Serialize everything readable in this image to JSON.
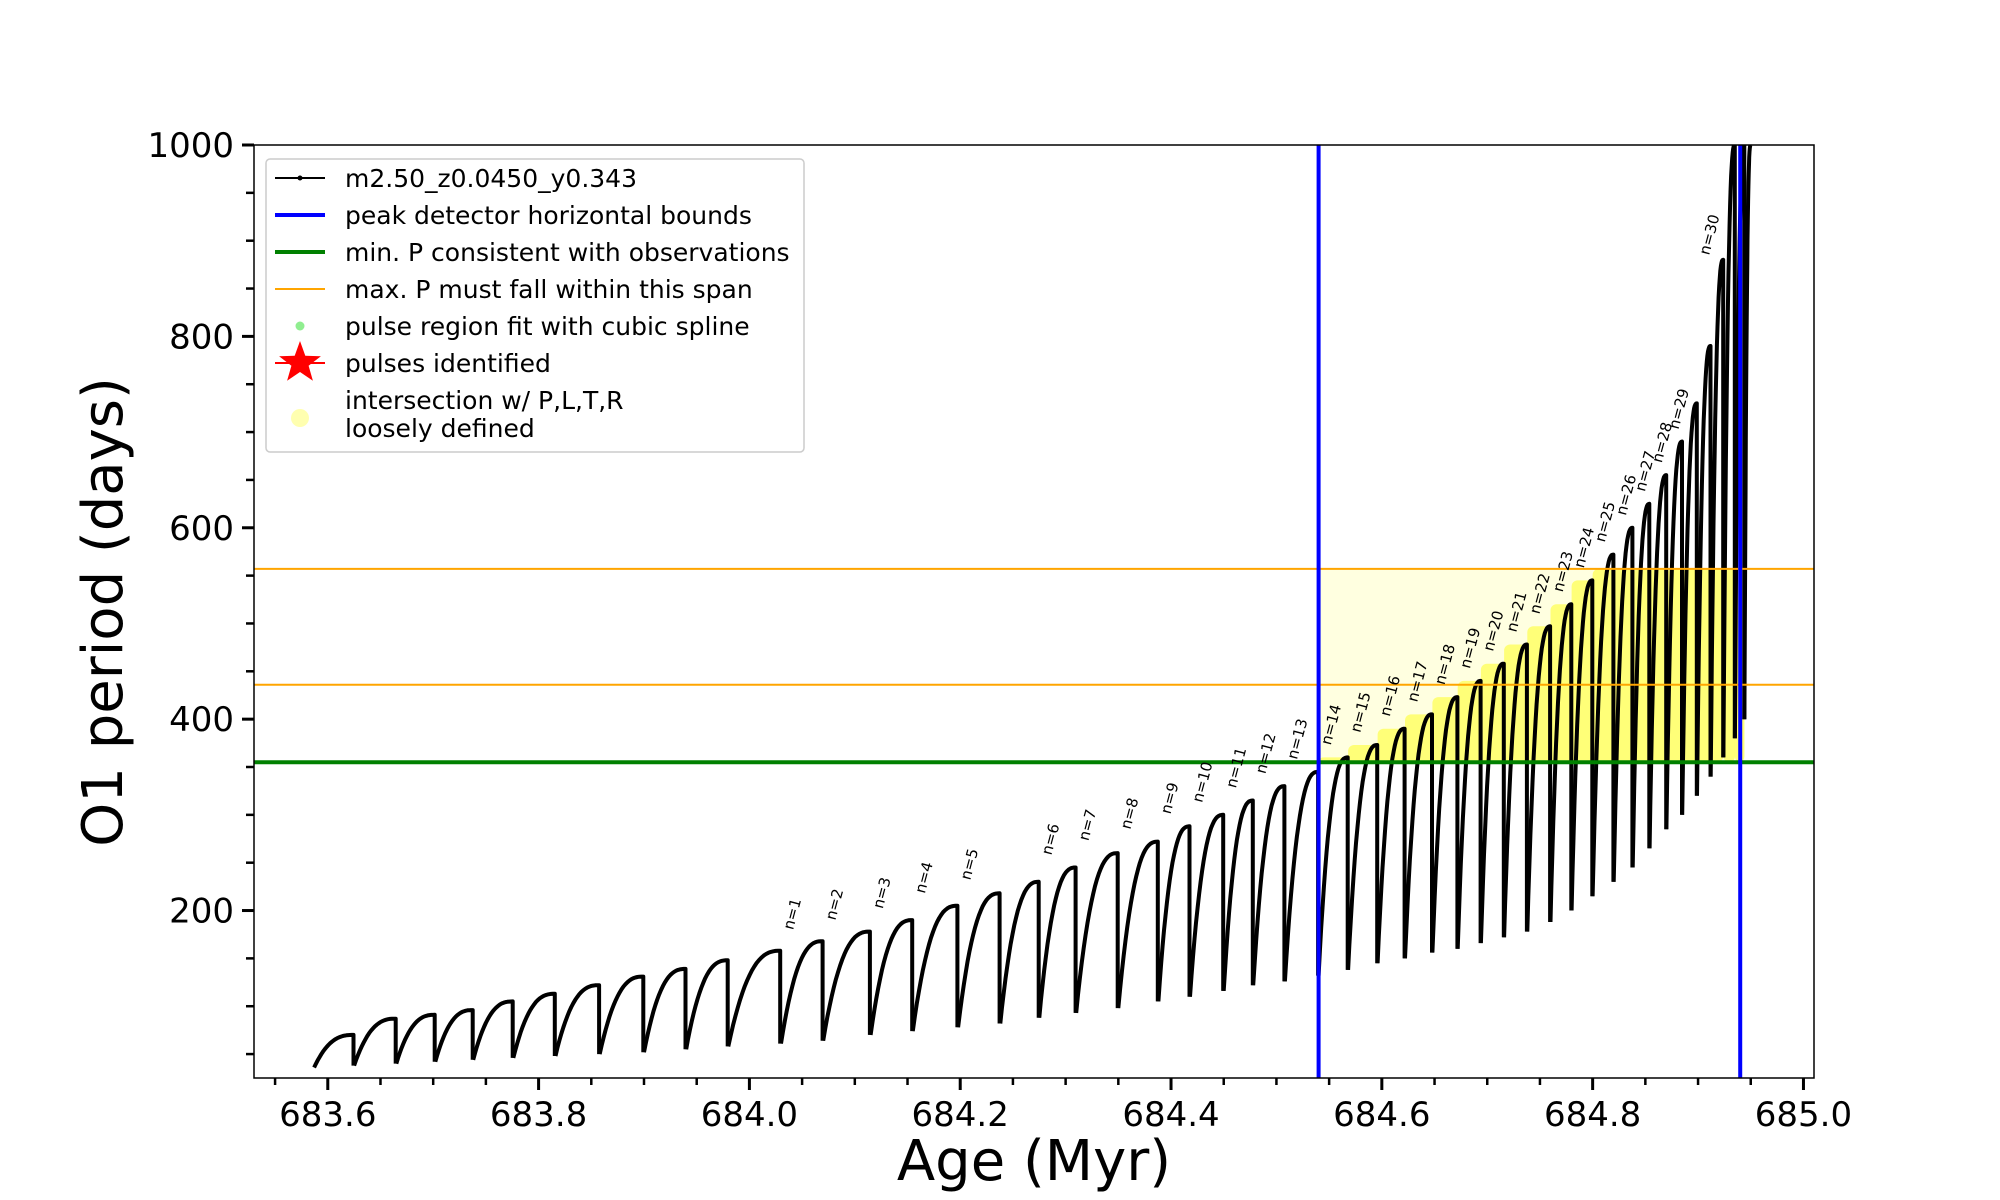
{
  "chart_data": {
    "type": "line",
    "title": "",
    "xlabel": "Age (Myr)",
    "ylabel": "O1 period (days)",
    "xlim": [
      683.53,
      685.01
    ],
    "ylim": [
      25,
      1000
    ],
    "x_ticks": [
      683.6,
      683.8,
      684.0,
      684.2,
      684.4,
      684.6,
      684.8,
      685.0
    ],
    "x_tick_labels": [
      "683.6",
      "683.8",
      "684.0",
      "684.2",
      "684.4",
      "684.6",
      "684.8",
      "685.0"
    ],
    "y_ticks": [
      200,
      400,
      600,
      800,
      1000
    ],
    "y_tick_labels": [
      "200",
      "400",
      "600",
      "800",
      "1000"
    ],
    "grid": false,
    "legend_position": "top-left",
    "legend": [
      {
        "label": "m2.50_z0.0450_y0.343",
        "marker": "line-dot",
        "color": "#000000"
      },
      {
        "label": "peak detector horizontal bounds",
        "marker": "line",
        "color": "#0000ff"
      },
      {
        "label": "min. P consistent with observations",
        "marker": "line",
        "color": "#008000"
      },
      {
        "label": "max. P must fall within this span",
        "marker": "line",
        "color": "#ffa500"
      },
      {
        "label": "pulse region fit with cubic spline",
        "marker": "dot",
        "color": "#90ee90"
      },
      {
        "label": "pulses identified",
        "marker": "star",
        "color": "#ff0000"
      },
      {
        "label": "intersection w/ P,L,T,R",
        "label2": "loosely defined",
        "marker": "big-dot",
        "color": "#ffffb0"
      }
    ],
    "vertical_lines": [
      {
        "x": 684.54,
        "color": "#0000ff",
        "series": "peak detector horizontal bounds"
      },
      {
        "x": 684.94,
        "color": "#0000ff",
        "series": "peak detector horizontal bounds"
      }
    ],
    "horizontal_lines": [
      {
        "y": 355,
        "color": "#008000",
        "series": "min. P consistent with observations"
      },
      {
        "y": 436,
        "color": "#ffa500",
        "series": "max. P must fall within this span"
      },
      {
        "y": 557,
        "color": "#ffa500",
        "series": "max. P must fall within this span"
      }
    ],
    "cycles": [
      {
        "start": 683.587,
        "min": 36,
        "peak": 70
      },
      {
        "start": 683.625,
        "min": 38,
        "peak": 87
      },
      {
        "start": 683.665,
        "min": 40,
        "peak": 91
      },
      {
        "start": 683.702,
        "min": 42,
        "peak": 96
      },
      {
        "start": 683.738,
        "min": 44,
        "peak": 105
      },
      {
        "start": 683.776,
        "min": 46,
        "peak": 113
      },
      {
        "start": 683.816,
        "min": 48,
        "peak": 122
      },
      {
        "start": 683.858,
        "min": 50,
        "peak": 131
      },
      {
        "start": 683.9,
        "min": 52,
        "peak": 139
      },
      {
        "start": 683.94,
        "min": 55,
        "peak": 148
      },
      {
        "start": 683.98,
        "min": 58,
        "peak": 158
      },
      {
        "start": 684.03,
        "min": 61,
        "peak": 168
      },
      {
        "start": 684.07,
        "min": 64,
        "peak": 178
      },
      {
        "start": 684.115,
        "min": 70,
        "peak": 190
      },
      {
        "start": 684.155,
        "min": 74,
        "peak": 205
      },
      {
        "start": 684.198,
        "min": 78,
        "peak": 218
      },
      {
        "start": 684.238,
        "min": 82,
        "peak": 230
      },
      {
        "start": 684.275,
        "min": 88,
        "peak": 245
      },
      {
        "start": 684.31,
        "min": 93,
        "peak": 260
      },
      {
        "start": 684.35,
        "min": 98,
        "peak": 272
      },
      {
        "start": 684.388,
        "min": 105,
        "peak": 288
      },
      {
        "start": 684.418,
        "min": 110,
        "peak": 300
      },
      {
        "start": 684.45,
        "min": 116,
        "peak": 315
      },
      {
        "start": 684.478,
        "min": 122,
        "peak": 330
      },
      {
        "start": 684.508,
        "min": 126,
        "peak": 345
      },
      {
        "start": 684.54,
        "min": 132,
        "peak": 360
      },
      {
        "start": 684.568,
        "min": 138,
        "peak": 373
      },
      {
        "start": 684.596,
        "min": 145,
        "peak": 390
      },
      {
        "start": 684.622,
        "min": 150,
        "peak": 405
      },
      {
        "start": 684.648,
        "min": 156,
        "peak": 423
      },
      {
        "start": 684.672,
        "min": 160,
        "peak": 440
      },
      {
        "start": 684.694,
        "min": 166,
        "peak": 458
      },
      {
        "start": 684.716,
        "min": 172,
        "peak": 478
      },
      {
        "start": 684.738,
        "min": 178,
        "peak": 497
      },
      {
        "start": 684.76,
        "min": 188,
        "peak": 520
      },
      {
        "start": 684.78,
        "min": 200,
        "peak": 545
      },
      {
        "start": 684.8,
        "min": 215,
        "peak": 572
      },
      {
        "start": 684.82,
        "min": 230,
        "peak": 600
      },
      {
        "start": 684.838,
        "min": 245,
        "peak": 625
      },
      {
        "start": 684.854,
        "min": 265,
        "peak": 655
      },
      {
        "start": 684.87,
        "min": 285,
        "peak": 690
      },
      {
        "start": 684.885,
        "min": 300,
        "peak": 730
      },
      {
        "start": 684.899,
        "min": 320,
        "peak": 790
      },
      {
        "start": 684.912,
        "min": 340,
        "peak": 880
      },
      {
        "start": 684.924,
        "min": 360,
        "peak": 1000
      },
      {
        "start": 684.935,
        "min": 380,
        "peak": 1000
      },
      {
        "start": 684.944,
        "min": 400,
        "peak": 1000
      }
    ],
    "pulse_labels": [
      {
        "text": "n=1",
        "x": 684.03,
        "y": 175
      },
      {
        "text": "n=2",
        "x": 684.07,
        "y": 185
      },
      {
        "text": "n=3",
        "x": 684.115,
        "y": 197
      },
      {
        "text": "n=4",
        "x": 684.155,
        "y": 213
      },
      {
        "text": "n=5",
        "x": 684.198,
        "y": 227
      },
      {
        "text": "n=6",
        "x": 684.275,
        "y": 253
      },
      {
        "text": "n=7",
        "x": 684.31,
        "y": 268
      },
      {
        "text": "n=8",
        "x": 684.35,
        "y": 280
      },
      {
        "text": "n=9",
        "x": 684.388,
        "y": 296
      },
      {
        "text": "n=10",
        "x": 684.418,
        "y": 308
      },
      {
        "text": "n=11",
        "x": 684.45,
        "y": 323
      },
      {
        "text": "n=12",
        "x": 684.478,
        "y": 338
      },
      {
        "text": "n=13",
        "x": 684.508,
        "y": 353
      },
      {
        "text": "n=14",
        "x": 684.54,
        "y": 368
      },
      {
        "text": "n=15",
        "x": 684.568,
        "y": 381
      },
      {
        "text": "n=16",
        "x": 684.596,
        "y": 398
      },
      {
        "text": "n=17",
        "x": 684.622,
        "y": 413
      },
      {
        "text": "n=18",
        "x": 684.648,
        "y": 431
      },
      {
        "text": "n=19",
        "x": 684.672,
        "y": 448
      },
      {
        "text": "n=20",
        "x": 684.694,
        "y": 466
      },
      {
        "text": "n=21",
        "x": 684.716,
        "y": 486
      },
      {
        "text": "n=22",
        "x": 684.738,
        "y": 505
      },
      {
        "text": "n=23",
        "x": 684.76,
        "y": 528
      },
      {
        "text": "n=24",
        "x": 684.78,
        "y": 553
      },
      {
        "text": "n=25",
        "x": 684.8,
        "y": 580
      },
      {
        "text": "n=26",
        "x": 684.82,
        "y": 608
      },
      {
        "text": "n=27",
        "x": 684.838,
        "y": 633
      },
      {
        "text": "n=28",
        "x": 684.854,
        "y": 663
      },
      {
        "text": "n=29",
        "x": 684.87,
        "y": 698
      },
      {
        "text": "n=30",
        "x": 684.899,
        "y": 880
      }
    ],
    "highlight_band": {
      "x_from": 684.54,
      "x_to": 684.944,
      "y_from": 355,
      "y_to": 557
    }
  }
}
